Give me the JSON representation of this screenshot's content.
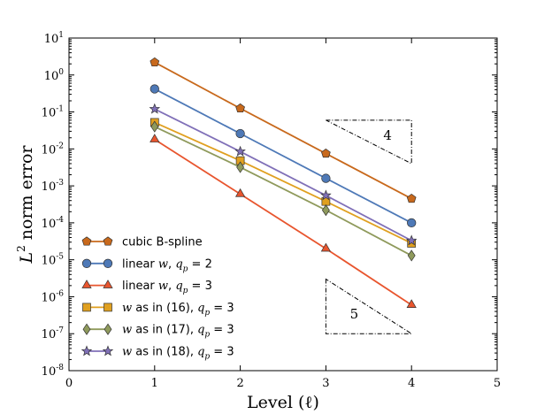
{
  "chart_data": {
    "type": "line",
    "xlabel": "Level (ℓ)",
    "ylabel": {
      "base": "L",
      "sup": "2",
      "rest": " norm error"
    },
    "x": [
      1,
      2,
      3,
      4
    ],
    "xlim": [
      0,
      5
    ],
    "xticks": [
      "0",
      "1",
      "2",
      "3",
      "4",
      "5"
    ],
    "ylim": [
      1e-08,
      10
    ],
    "yscale": "log",
    "yticks": [
      {
        "base": "10",
        "exp": "-8"
      },
      {
        "base": "10",
        "exp": "-7"
      },
      {
        "base": "10",
        "exp": "-6"
      },
      {
        "base": "10",
        "exp": "-5"
      },
      {
        "base": "10",
        "exp": "-4"
      },
      {
        "base": "10",
        "exp": "-3"
      },
      {
        "base": "10",
        "exp": "-2"
      },
      {
        "base": "10",
        "exp": "-1"
      },
      {
        "base": "10",
        "exp": "0"
      },
      {
        "base": "10",
        "exp": "1"
      }
    ],
    "grid": false,
    "legend_position": "lower-left",
    "series": [
      {
        "name": "cubic B-spline",
        "label_parts": [
          {
            "t": "cubic B-spline",
            "it": false
          }
        ],
        "values": [
          2.2,
          0.125,
          0.0075,
          0.00045
        ],
        "color": "#c8691c",
        "marker": "pentagon"
      },
      {
        "name": "linear w, q_p = 2",
        "label_parts": [
          {
            "t": "linear ",
            "it": false
          },
          {
            "t": "w",
            "it": true
          },
          {
            "t": ", ",
            "it": false
          },
          {
            "t": "q",
            "it": true
          },
          {
            "t": "p",
            "sub": true
          },
          {
            "t": " = 2",
            "it": false
          }
        ],
        "values": [
          0.42,
          0.026,
          0.0016,
          0.0001
        ],
        "color": "#4e79b7",
        "marker": "circle"
      },
      {
        "name": "linear w, q_p = 3",
        "label_parts": [
          {
            "t": "linear ",
            "it": false
          },
          {
            "t": "w",
            "it": true
          },
          {
            "t": ", ",
            "it": false
          },
          {
            "t": "q",
            "it": true
          },
          {
            "t": "p",
            "sub": true
          },
          {
            "t": " = 3",
            "it": false
          }
        ],
        "values": [
          0.018,
          0.0006,
          2e-05,
          6e-07
        ],
        "color": "#e8552e",
        "marker": "triangle"
      },
      {
        "name": "w as in (16), q_p = 3",
        "label_parts": [
          {
            "t": "w",
            "it": true
          },
          {
            "t": " as in (16), ",
            "it": false
          },
          {
            "t": "q",
            "it": true
          },
          {
            "t": "p",
            "sub": true
          },
          {
            "t": " = 3",
            "it": false
          }
        ],
        "values": [
          0.052,
          0.0048,
          0.00038,
          2.8e-05
        ],
        "color": "#e0a020",
        "marker": "square"
      },
      {
        "name": "w as in (17), q_p = 3",
        "label_parts": [
          {
            "t": "w",
            "it": true
          },
          {
            "t": " as in (17), ",
            "it": false
          },
          {
            "t": "q",
            "it": true
          },
          {
            "t": "p",
            "sub": true
          },
          {
            "t": " = 3",
            "it": false
          }
        ],
        "values": [
          0.04,
          0.0032,
          0.00022,
          1.3e-05
        ],
        "color": "#8f9a5c",
        "marker": "diamond"
      },
      {
        "name": "w as in (18), q_p = 3",
        "label_parts": [
          {
            "t": "w",
            "it": true
          },
          {
            "t": " as in (18), ",
            "it": false
          },
          {
            "t": "q",
            "it": true
          },
          {
            "t": "p",
            "sub": true
          },
          {
            "t": " = 3",
            "it": false
          }
        ],
        "values": [
          0.12,
          0.0085,
          0.00055,
          3.3e-05
        ],
        "color": "#8070b8",
        "marker": "star"
      }
    ],
    "annotations": [
      {
        "text": "4",
        "kind": "slope-triangle-upper",
        "x_range": [
          3,
          4
        ],
        "y_range": [
          0.004,
          0.06
        ]
      },
      {
        "text": "5",
        "kind": "slope-triangle-lower",
        "x_range": [
          3,
          4
        ],
        "y_range": [
          1e-07,
          3e-06
        ]
      }
    ]
  }
}
